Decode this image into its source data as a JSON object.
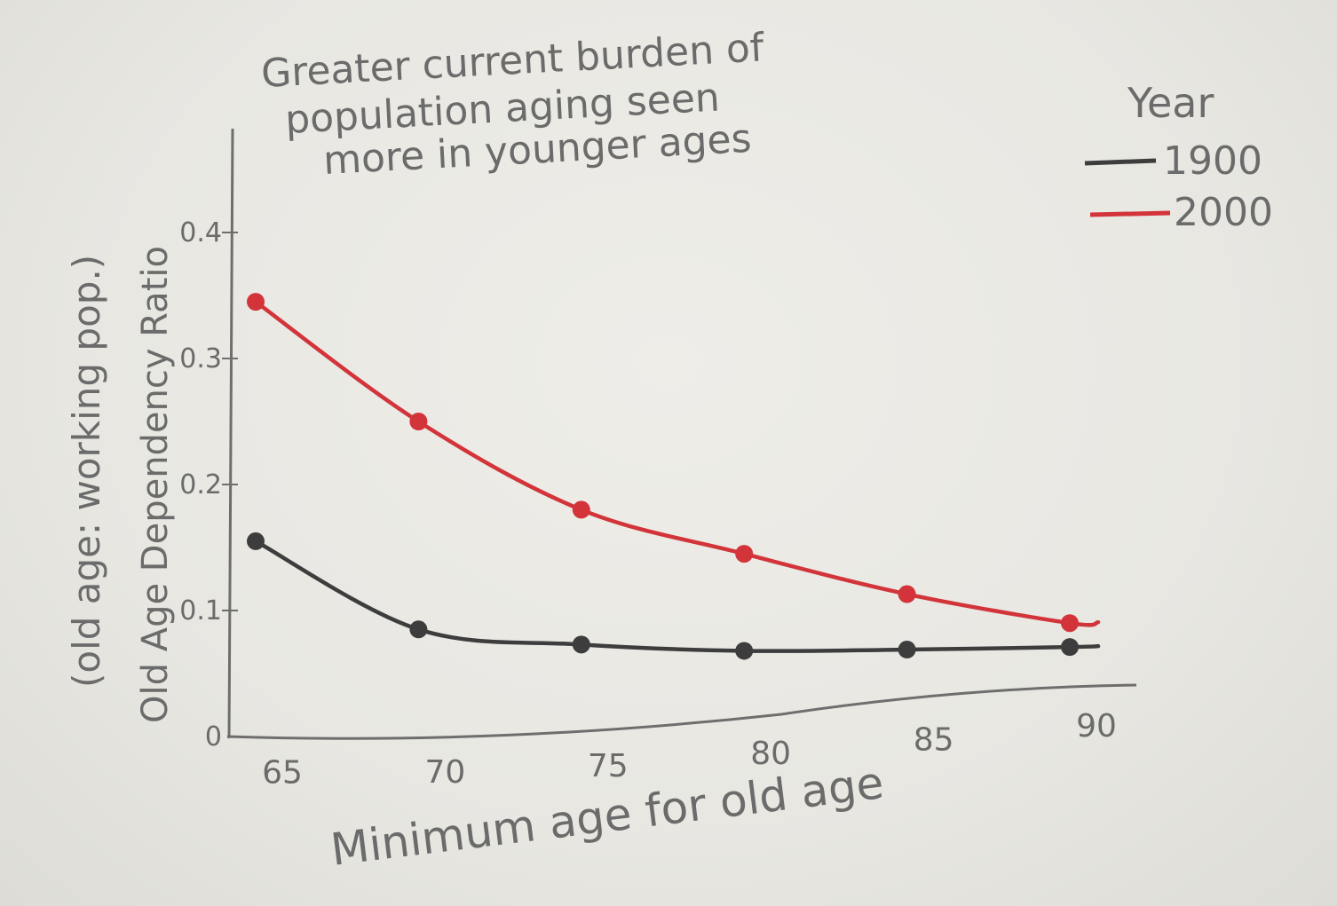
{
  "chart_data": {
    "type": "line",
    "title": "Greater current burden of population aging seen more in younger ages",
    "title_lines": [
      "Greater current burden of",
      "population aging seen",
      "more in younger ages"
    ],
    "xlabel": "Minimum age for old age",
    "ylabel": "Old Age Dependency Ratio",
    "ylabel_sub": "(old age: working pop.)",
    "x": [
      65,
      70,
      75,
      80,
      85,
      90
    ],
    "x_ticks": [
      "65",
      "70",
      "75",
      "80",
      "85",
      "90"
    ],
    "y_ticks": [
      "0",
      "0.1",
      "0.2",
      "0.3",
      "0.4"
    ],
    "y_tick_values": [
      0,
      0.1,
      0.2,
      0.3,
      0.4
    ],
    "xlim": [
      65,
      90
    ],
    "ylim": [
      0,
      0.4
    ],
    "grid": false,
    "legend_title": "Year",
    "legend_position": "top-right",
    "series": [
      {
        "name": "1900",
        "color": "#3d3d3d",
        "values": [
          0.155,
          0.085,
          0.073,
          0.068,
          0.069,
          0.071
        ]
      },
      {
        "name": "2000",
        "color": "#d2343a",
        "values": [
          0.345,
          0.25,
          0.18,
          0.145,
          0.113,
          0.09
        ]
      }
    ]
  }
}
